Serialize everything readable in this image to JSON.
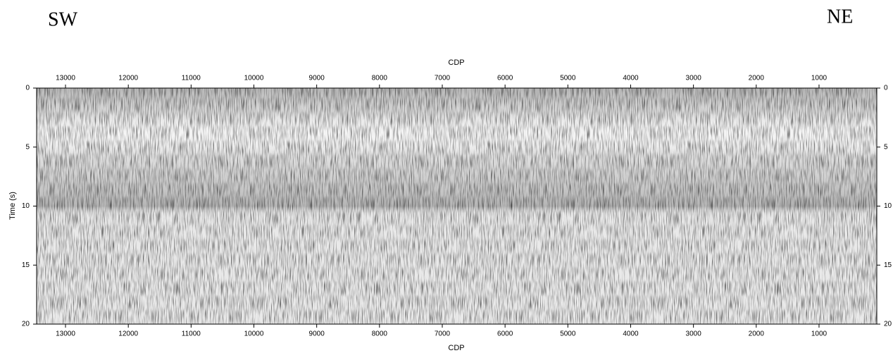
{
  "chart_data": {
    "type": "seismic-section",
    "left_label": "SW",
    "right_label": "NE",
    "xlabel": "CDP",
    "ylabel": "Time (s)",
    "xlim": [
      13460,
      80
    ],
    "xticks": [
      13000,
      12000,
      11000,
      10000,
      9000,
      8000,
      7000,
      6000,
      5000,
      4000,
      3000,
      2000,
      1000
    ],
    "ylim": [
      0,
      20
    ],
    "yticks": [
      0,
      5,
      10,
      15,
      20
    ]
  }
}
